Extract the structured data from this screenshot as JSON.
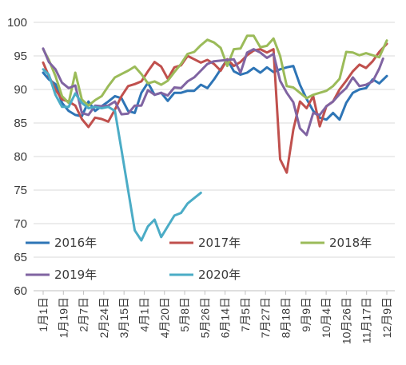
{
  "chart_data": {
    "type": "line",
    "title": "",
    "xlabel": "",
    "ylabel": "",
    "ylim": [
      60,
      100
    ],
    "ytick_step": 5,
    "grid": "horizontal",
    "legend_position": "inside-bottom",
    "x_tick_labels": [
      "1月1日",
      "1月19日",
      "2月7日",
      "2月24日",
      "3月15日",
      "4月1日",
      "4月20日",
      "5月8日",
      "5月26日",
      "6月14日",
      "7月5日",
      "7月27日",
      "8月18日",
      "9月9日",
      "10月4日",
      "10月26日",
      "11月17日",
      "12月9日"
    ],
    "x_domain": [
      1,
      365
    ],
    "series": [
      {
        "name": "2016年",
        "color": "#2e75b6",
        "x": [
          1,
          7,
          14,
          21,
          28,
          35,
          42,
          49,
          56,
          63,
          70,
          77,
          84,
          91,
          98,
          105,
          112,
          119,
          126,
          133,
          140,
          147,
          154,
          161,
          168,
          175,
          182,
          189,
          196,
          203,
          210,
          217,
          224,
          231,
          238,
          245,
          252,
          259,
          266,
          273,
          280,
          287,
          294,
          301,
          308,
          315,
          322,
          329,
          336,
          343,
          350,
          357,
          365
        ],
        "y": [
          92.5,
          91.5,
          90.8,
          88,
          86.8,
          86.2,
          86,
          88.2,
          86.8,
          87.5,
          88.2,
          89,
          88.7,
          86.8,
          86.5,
          89.5,
          91,
          89.2,
          89.5,
          88.3,
          89.5,
          89.5,
          89.8,
          89.8,
          90.7,
          90.2,
          91.5,
          93,
          94.5,
          92.7,
          92.2,
          92.5,
          93.2,
          92.5,
          93.3,
          92.6,
          93,
          93.3,
          93.5,
          90.7,
          88.6,
          86.8,
          85.8,
          85.5,
          86.5,
          85.5,
          88,
          89.5,
          90,
          90.2,
          91.5,
          90.9,
          92
        ]
      },
      {
        "name": "2017年",
        "color": "#c0504d",
        "x": [
          1,
          7,
          14,
          21,
          28,
          35,
          42,
          49,
          56,
          63,
          70,
          77,
          84,
          91,
          98,
          105,
          112,
          119,
          126,
          133,
          140,
          147,
          154,
          161,
          168,
          175,
          182,
          189,
          196,
          203,
          210,
          217,
          224,
          231,
          238,
          245,
          252,
          259,
          266,
          273,
          280,
          287,
          294,
          301,
          308,
          315,
          322,
          329,
          336,
          343,
          350,
          357,
          365
        ],
        "y": [
          94,
          92,
          90,
          88.5,
          88.2,
          87.6,
          85.6,
          84.4,
          85.8,
          85.6,
          85.2,
          87,
          89,
          90.5,
          90.8,
          91.2,
          92.7,
          94.1,
          93.4,
          91.6,
          93.3,
          93.6,
          95,
          94.5,
          94,
          94.4,
          93.8,
          92.8,
          94.5,
          93.5,
          94.1,
          95.1,
          95.8,
          96,
          95.5,
          96,
          79.6,
          77.6,
          84,
          88.2,
          87.2,
          89,
          84.5,
          87.5,
          88.2,
          90,
          91.3,
          92.7,
          93.7,
          93.2,
          94.2,
          95.6,
          96.8
        ]
      },
      {
        "name": "2018年",
        "color": "#9bbb59",
        "x": [
          1,
          7,
          14,
          21,
          28,
          35,
          42,
          49,
          56,
          63,
          70,
          77,
          84,
          91,
          98,
          105,
          112,
          119,
          126,
          133,
          140,
          147,
          154,
          161,
          168,
          175,
          182,
          189,
          196,
          203,
          210,
          217,
          224,
          231,
          238,
          245,
          252,
          259,
          266,
          273,
          280,
          287,
          294,
          301,
          308,
          315,
          322,
          329,
          336,
          343,
          350,
          357,
          365
        ],
        "y": [
          96,
          94.4,
          92,
          89,
          88,
          92.5,
          88.5,
          87.6,
          88.4,
          89,
          90.5,
          91.8,
          92.3,
          92.8,
          93.4,
          92.3,
          90.9,
          91.2,
          90.7,
          91.3,
          92.6,
          93.8,
          95.3,
          95.6,
          96.6,
          97.4,
          97,
          96.2,
          93.5,
          96,
          96.1,
          98,
          98,
          96.3,
          96.5,
          97.6,
          95,
          90.5,
          90.3,
          89.5,
          88.7,
          89.2,
          89.5,
          89.8,
          90.5,
          91.6,
          95.6,
          95.5,
          95.1,
          95.4,
          95.1,
          94.8,
          97.3
        ]
      },
      {
        "name": "2019年",
        "color": "#8064a2",
        "x": [
          1,
          7,
          14,
          21,
          28,
          35,
          42,
          49,
          56,
          63,
          70,
          77,
          84,
          91,
          98,
          105,
          112,
          119,
          126,
          133,
          140,
          147,
          154,
          161,
          168,
          175,
          182,
          189,
          196,
          203,
          210,
          217,
          224,
          231,
          238,
          245,
          252,
          259,
          266,
          273,
          280,
          287,
          294,
          301,
          308,
          315,
          322,
          329,
          336,
          343,
          350,
          357,
          361
        ],
        "y": [
          96.1,
          94.1,
          93,
          91,
          90.2,
          90.6,
          86.5,
          86.2,
          87.6,
          87.5,
          87.6,
          88.2,
          86.3,
          86.4,
          87.6,
          87.6,
          89.9,
          89.2,
          89.5,
          89.1,
          90.3,
          90.2,
          91.2,
          91.8,
          92.8,
          93.8,
          94.2,
          94.3,
          94.4,
          94.5,
          92.5,
          95.5,
          96,
          95.5,
          94.7,
          95.3,
          91.3,
          89.5,
          88.1,
          84.2,
          83.2,
          86.5,
          86.2,
          87.5,
          88.2,
          89.3,
          90.2,
          91.8,
          90.5,
          90.7,
          91.2,
          93.1,
          94.6
        ]
      },
      {
        "name": "2020年",
        "color": "#4bacc6",
        "x": [
          1,
          7,
          14,
          21,
          28,
          35,
          42,
          49,
          56,
          63,
          70,
          77,
          84,
          91,
          98,
          105,
          112,
          119,
          126,
          133,
          140,
          147,
          154,
          161,
          168
        ],
        "y": [
          93,
          92.2,
          89.2,
          87.4,
          87.4,
          89.4,
          88,
          87.2,
          87.4,
          87.2,
          87.4,
          86.8,
          81,
          75,
          69,
          67.5,
          69.6,
          70.6,
          68,
          69.6,
          71.2,
          71.6,
          73,
          73.8,
          74.6
        ]
      }
    ]
  }
}
